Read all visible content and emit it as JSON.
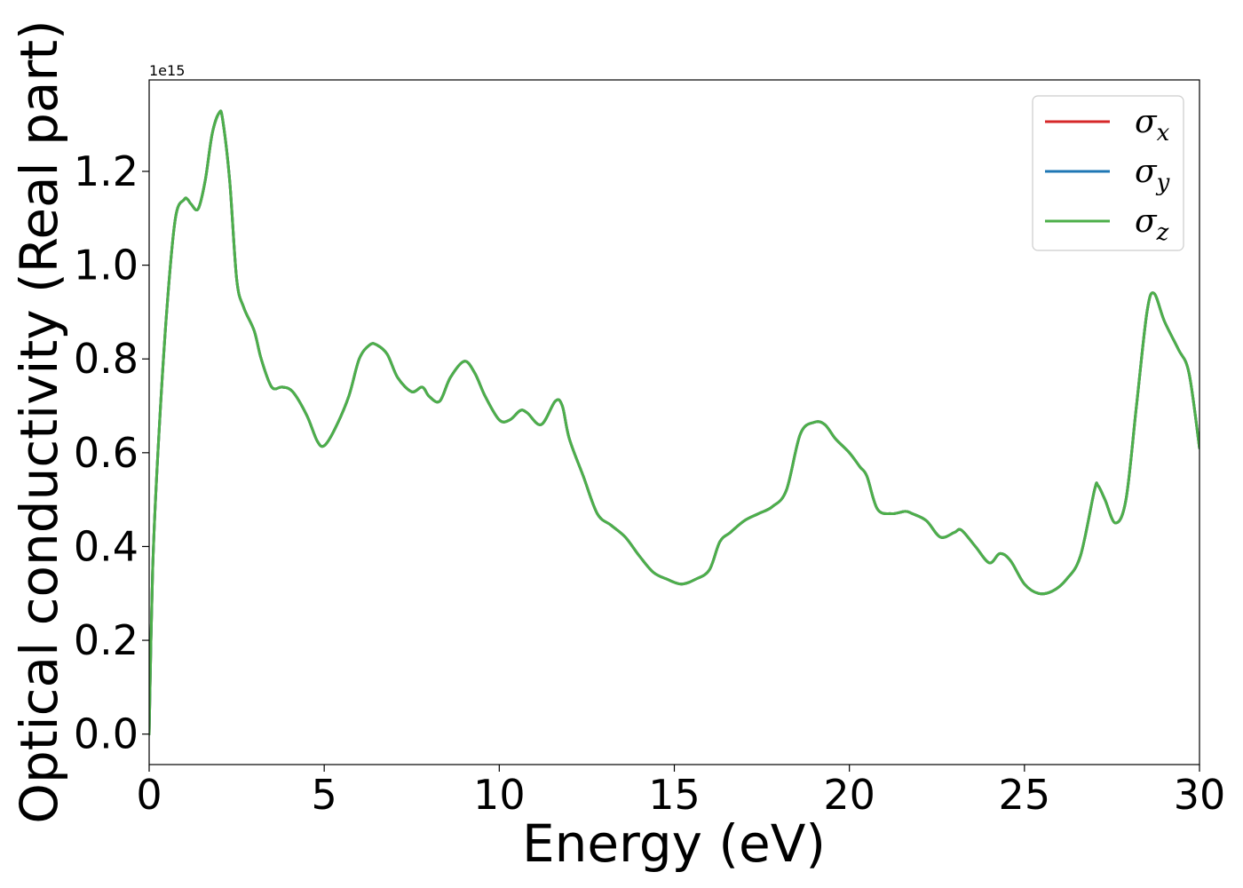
{
  "chart_data": {
    "type": "line",
    "title": "",
    "xlabel": "Energy (eV)",
    "ylabel": "Optical conductivity (Real part)",
    "y_offset_text": "1e15",
    "y_scale_factor": 1000000000000000.0,
    "xlim": [
      0,
      30
    ],
    "ylim": [
      -0.065,
      1.395
    ],
    "xticks": [
      0,
      5,
      10,
      15,
      20,
      25,
      30
    ],
    "xtick_labels": [
      "0",
      "5",
      "10",
      "15",
      "20",
      "25",
      "30"
    ],
    "yticks": [
      0.0,
      0.2,
      0.4,
      0.6,
      0.8,
      1.0,
      1.2
    ],
    "ytick_labels": [
      "0.0",
      "0.2",
      "0.4",
      "0.6",
      "0.8",
      "1.0",
      "1.2"
    ],
    "grid": false,
    "legend_position": "top-right",
    "legend": [
      {
        "symbol": "σ",
        "subscript": "x",
        "color": "#d62728"
      },
      {
        "symbol": "σ",
        "subscript": "y",
        "color": "#1f77b4"
      },
      {
        "symbol": "σ",
        "subscript": "z",
        "color": "#4daf4a"
      }
    ],
    "x": [
      0,
      0.1,
      0.25,
      0.5,
      0.75,
      1.0,
      1.1,
      1.2,
      1.4,
      1.6,
      1.8,
      2.0,
      2.1,
      2.3,
      2.5,
      2.7,
      3.0,
      3.2,
      3.5,
      3.8,
      4.1,
      4.5,
      4.8,
      5.0,
      5.3,
      5.7,
      6.0,
      6.3,
      6.5,
      6.8,
      7.1,
      7.5,
      7.8,
      8.0,
      8.3,
      8.6,
      9.0,
      9.3,
      9.6,
      10.0,
      10.3,
      10.6,
      10.8,
      11.2,
      11.6,
      11.8,
      12.0,
      12.4,
      12.8,
      13.2,
      13.6,
      14.0,
      14.4,
      14.8,
      15.2,
      15.6,
      16.0,
      16.3,
      16.6,
      17.0,
      17.4,
      17.8,
      18.2,
      18.6,
      19.0,
      19.3,
      19.6,
      20.0,
      20.3,
      20.5,
      20.8,
      21.2,
      21.6,
      21.8,
      22.2,
      22.6,
      23.0,
      23.2,
      23.6,
      24.0,
      24.3,
      24.6,
      25.0,
      25.4,
      25.8,
      26.2,
      26.6,
      27.0,
      27.1,
      27.3,
      27.6,
      27.9,
      28.2,
      28.5,
      28.7,
      29.0,
      29.4,
      29.7,
      30.0
    ],
    "series": [
      {
        "name": "σx",
        "color": "#d62728",
        "y": [
          0.0,
          0.35,
          0.6,
          0.9,
          1.1,
          1.14,
          1.14,
          1.13,
          1.12,
          1.18,
          1.28,
          1.325,
          1.31,
          1.18,
          0.97,
          0.91,
          0.86,
          0.8,
          0.74,
          0.74,
          0.73,
          0.68,
          0.625,
          0.615,
          0.65,
          0.72,
          0.8,
          0.83,
          0.83,
          0.81,
          0.76,
          0.73,
          0.74,
          0.72,
          0.71,
          0.76,
          0.795,
          0.77,
          0.72,
          0.67,
          0.67,
          0.69,
          0.685,
          0.66,
          0.71,
          0.7,
          0.63,
          0.55,
          0.47,
          0.445,
          0.42,
          0.38,
          0.345,
          0.33,
          0.32,
          0.33,
          0.35,
          0.41,
          0.43,
          0.455,
          0.47,
          0.485,
          0.52,
          0.64,
          0.665,
          0.66,
          0.63,
          0.6,
          0.57,
          0.55,
          0.48,
          0.47,
          0.475,
          0.47,
          0.455,
          0.42,
          0.43,
          0.435,
          0.4,
          0.365,
          0.385,
          0.37,
          0.32,
          0.3,
          0.305,
          0.33,
          0.38,
          0.52,
          0.53,
          0.5,
          0.45,
          0.5,
          0.7,
          0.9,
          0.94,
          0.88,
          0.82,
          0.77,
          0.61
        ]
      },
      {
        "name": "σy",
        "color": "#1f77b4",
        "y": [
          0.0,
          0.35,
          0.6,
          0.9,
          1.1,
          1.14,
          1.14,
          1.13,
          1.12,
          1.18,
          1.28,
          1.325,
          1.31,
          1.18,
          0.97,
          0.91,
          0.86,
          0.8,
          0.74,
          0.74,
          0.73,
          0.68,
          0.625,
          0.615,
          0.65,
          0.72,
          0.8,
          0.83,
          0.83,
          0.81,
          0.76,
          0.73,
          0.74,
          0.72,
          0.71,
          0.76,
          0.795,
          0.77,
          0.72,
          0.67,
          0.67,
          0.69,
          0.685,
          0.66,
          0.71,
          0.7,
          0.63,
          0.55,
          0.47,
          0.445,
          0.42,
          0.38,
          0.345,
          0.33,
          0.32,
          0.33,
          0.35,
          0.41,
          0.43,
          0.455,
          0.47,
          0.485,
          0.52,
          0.64,
          0.665,
          0.66,
          0.63,
          0.6,
          0.57,
          0.55,
          0.48,
          0.47,
          0.475,
          0.47,
          0.455,
          0.42,
          0.43,
          0.435,
          0.4,
          0.365,
          0.385,
          0.37,
          0.32,
          0.3,
          0.305,
          0.33,
          0.38,
          0.52,
          0.53,
          0.5,
          0.45,
          0.5,
          0.7,
          0.9,
          0.94,
          0.88,
          0.82,
          0.77,
          0.61
        ]
      },
      {
        "name": "σz",
        "color": "#4daf4a",
        "y": [
          0.0,
          0.35,
          0.6,
          0.9,
          1.1,
          1.14,
          1.14,
          1.13,
          1.12,
          1.18,
          1.28,
          1.325,
          1.31,
          1.18,
          0.97,
          0.91,
          0.86,
          0.8,
          0.74,
          0.74,
          0.73,
          0.68,
          0.625,
          0.615,
          0.65,
          0.72,
          0.8,
          0.83,
          0.83,
          0.81,
          0.76,
          0.73,
          0.74,
          0.72,
          0.71,
          0.76,
          0.795,
          0.77,
          0.72,
          0.67,
          0.67,
          0.69,
          0.685,
          0.66,
          0.71,
          0.7,
          0.63,
          0.55,
          0.47,
          0.445,
          0.42,
          0.38,
          0.345,
          0.33,
          0.32,
          0.33,
          0.35,
          0.41,
          0.43,
          0.455,
          0.47,
          0.485,
          0.52,
          0.64,
          0.665,
          0.66,
          0.63,
          0.6,
          0.57,
          0.55,
          0.48,
          0.47,
          0.475,
          0.47,
          0.455,
          0.42,
          0.43,
          0.435,
          0.4,
          0.365,
          0.385,
          0.37,
          0.32,
          0.3,
          0.305,
          0.33,
          0.38,
          0.52,
          0.53,
          0.5,
          0.45,
          0.5,
          0.7,
          0.9,
          0.94,
          0.88,
          0.82,
          0.77,
          0.61
        ]
      }
    ]
  }
}
